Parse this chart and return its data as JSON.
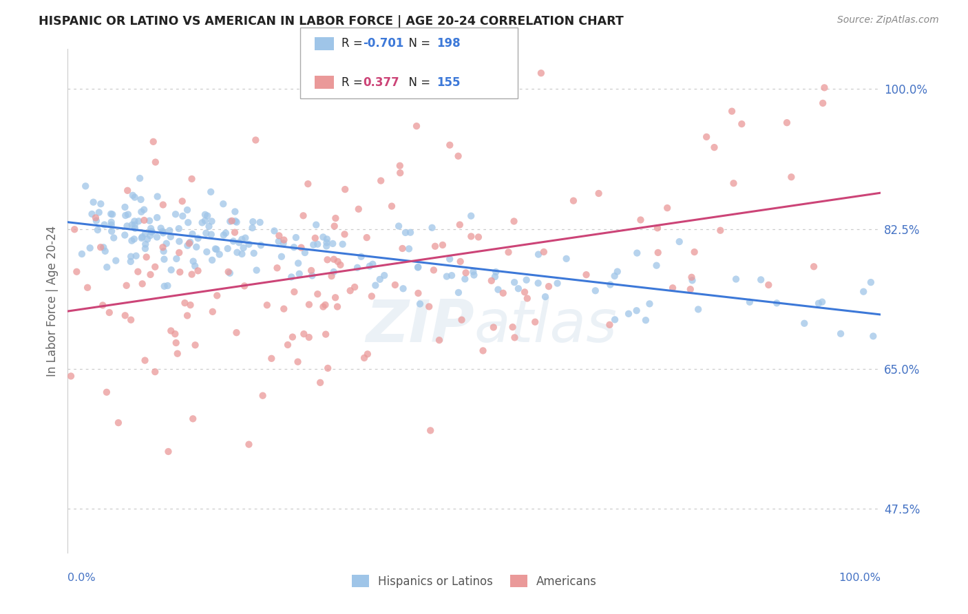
{
  "title": "HISPANIC OR LATINO VS AMERICAN IN LABOR FORCE | AGE 20-24 CORRELATION CHART",
  "source": "Source: ZipAtlas.com",
  "ylabel": "In Labor Force | Age 20-24",
  "legend_label1": "Hispanics or Latinos",
  "legend_label2": "Americans",
  "r1": "-0.701",
  "n1": "198",
  "r2": "0.377",
  "n2": "155",
  "blue_color": "#9fc5e8",
  "pink_color": "#ea9999",
  "blue_line_color": "#3c78d8",
  "pink_line_color": "#cc4477",
  "text_color": "#4472c4",
  "axis_label_color": "#666666",
  "grid_color": "#cccccc",
  "background_color": "#ffffff",
  "xlim": [
    0.0,
    1.0
  ],
  "ylim": [
    0.42,
    1.05
  ],
  "yticks": [
    0.475,
    0.65,
    0.825,
    1.0
  ],
  "watermark": "ZIPatlas",
  "blue_seed": 42,
  "pink_seed": 77,
  "n_blue": 198,
  "n_pink": 155
}
